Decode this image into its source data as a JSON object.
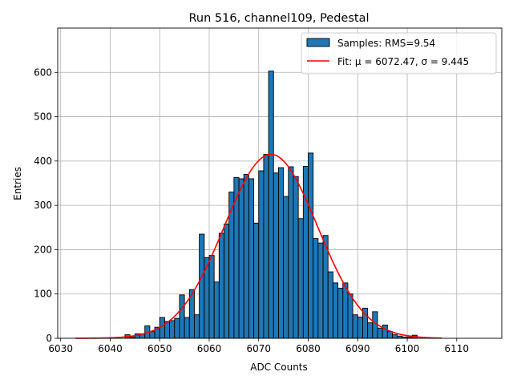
{
  "chart_data": {
    "type": "bar",
    "title": "Run 516, channel109, Pedestal",
    "xlabel": "ADC Counts",
    "ylabel": "Entries",
    "xlim": [
      6029.4,
      6119.1
    ],
    "ylim": [
      0,
      700
    ],
    "xticks": [
      6030,
      6040,
      6050,
      6060,
      6070,
      6080,
      6090,
      6100,
      6110
    ],
    "yticks": [
      0,
      100,
      200,
      300,
      400,
      500,
      600
    ],
    "grid": true,
    "legend_position": "top-right",
    "bin_width": 1,
    "bin_starts": [
      6043,
      6044,
      6045,
      6046,
      6047,
      6048,
      6049,
      6050,
      6051,
      6052,
      6053,
      6054,
      6055,
      6056,
      6057,
      6058,
      6059,
      6060,
      6061,
      6062,
      6063,
      6064,
      6065,
      6066,
      6067,
      6068,
      6069,
      6070,
      6071,
      6072,
      6073,
      6074,
      6075,
      6076,
      6077,
      6078,
      6079,
      6080,
      6081,
      6082,
      6083,
      6084,
      6085,
      6086,
      6087,
      6088,
      6089,
      6090,
      6091,
      6092,
      6093,
      6094,
      6095,
      6096,
      6097,
      6098,
      6099,
      6100,
      6101
    ],
    "values": [
      8,
      3,
      10,
      10,
      28,
      15,
      25,
      47,
      38,
      40,
      45,
      98,
      47,
      110,
      53,
      235,
      182,
      187,
      127,
      237,
      258,
      330,
      363,
      360,
      370,
      360,
      260,
      378,
      415,
      603,
      373,
      385,
      320,
      387,
      365,
      270,
      388,
      418,
      225,
      215,
      232,
      150,
      125,
      113,
      125,
      100,
      53,
      48,
      68,
      35,
      60,
      23,
      30,
      15,
      8,
      5,
      3,
      3,
      7
    ],
    "series": [
      {
        "name": "Samples: RMS=9.54",
        "kind": "histogram",
        "color": "#1f77b4"
      },
      {
        "name": "Fit: μ = 6072.47, σ = 9.445",
        "kind": "line",
        "color": "#ff0000",
        "mu": 6072.47,
        "sigma": 9.445,
        "amplitude": 415,
        "x_range": [
          6033,
          6107
        ]
      }
    ]
  }
}
